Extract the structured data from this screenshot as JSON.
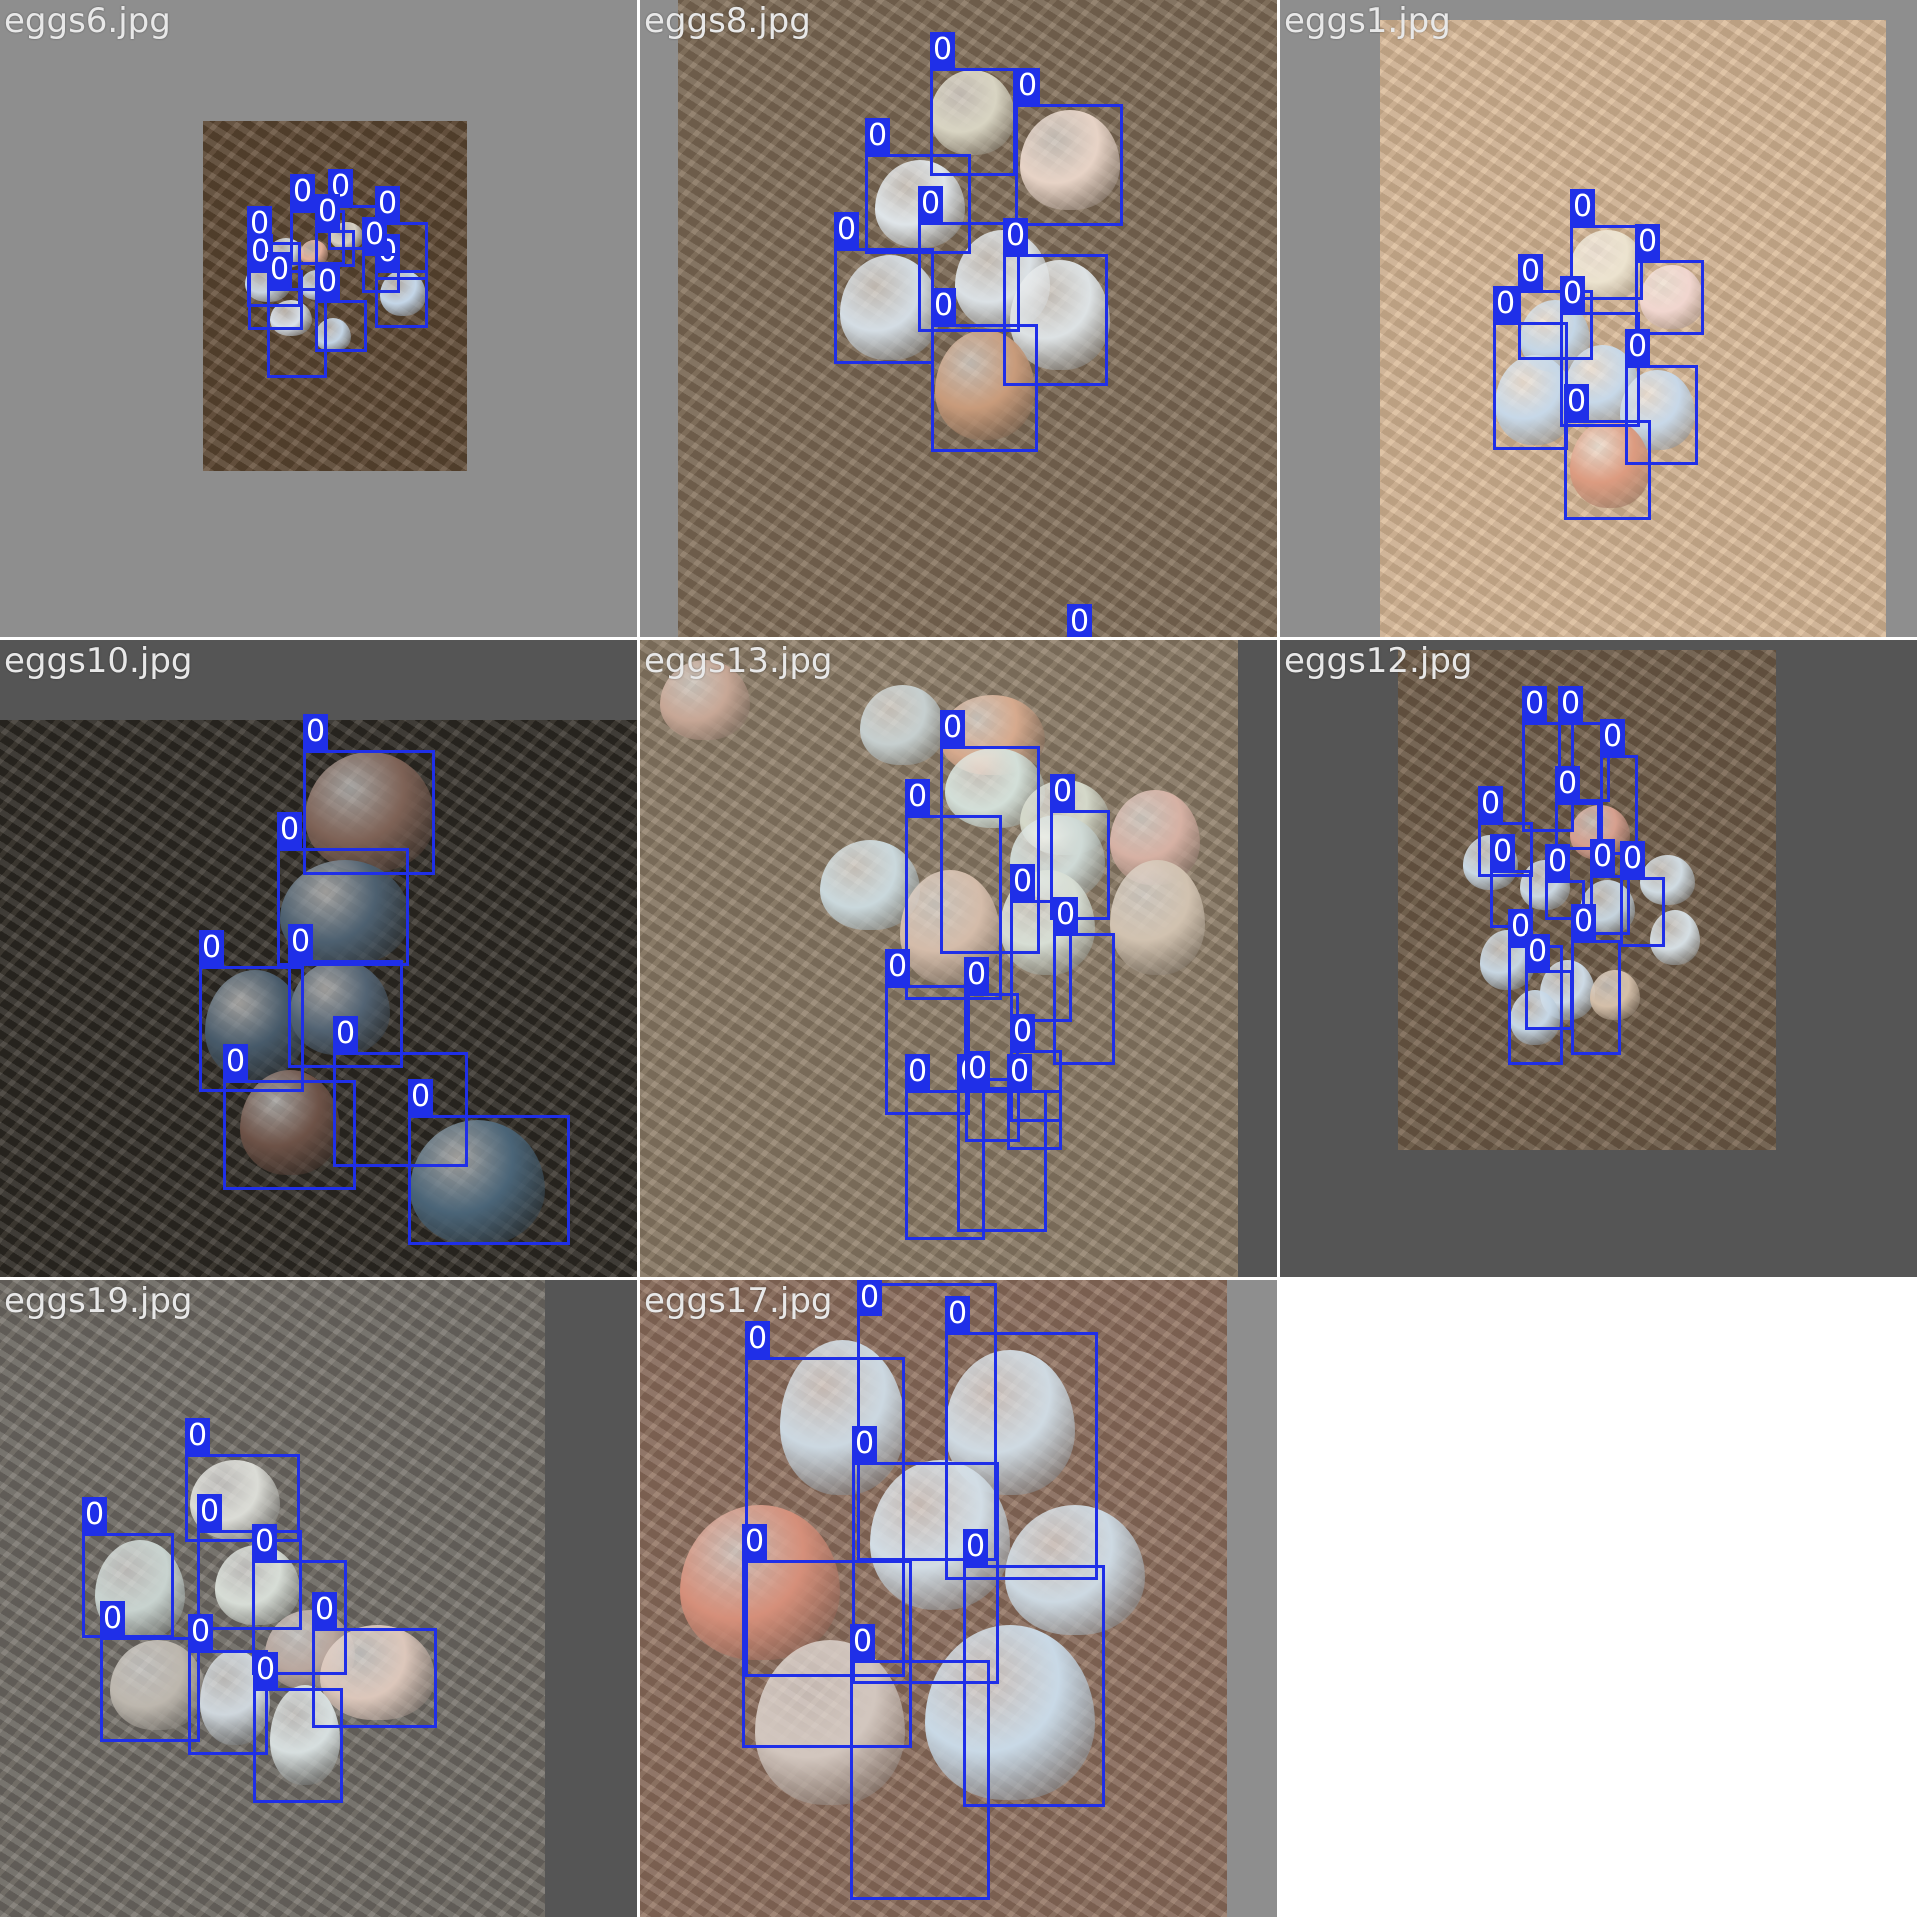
{
  "tiles": [
    {
      "filename": "eggs6.jpg",
      "class_label": "0"
    },
    {
      "filename": "eggs8.jpg",
      "class_label": "0"
    },
    {
      "filename": "eggs1.jpg",
      "class_label": "0"
    },
    {
      "filename": "eggs10.jpg",
      "class_label": "0"
    },
    {
      "filename": "eggs13.jpg",
      "class_label": "0"
    },
    {
      "filename": "eggs12.jpg",
      "class_label": "0"
    },
    {
      "filename": "eggs19.jpg",
      "class_label": "0"
    },
    {
      "filename": "eggs17.jpg",
      "class_label": "0"
    }
  ],
  "colors": {
    "box": "#1f2fe8",
    "label_text": "#ffffff",
    "padding_gray": "#8e8e8e",
    "filename_text": "#e8e8e8"
  }
}
